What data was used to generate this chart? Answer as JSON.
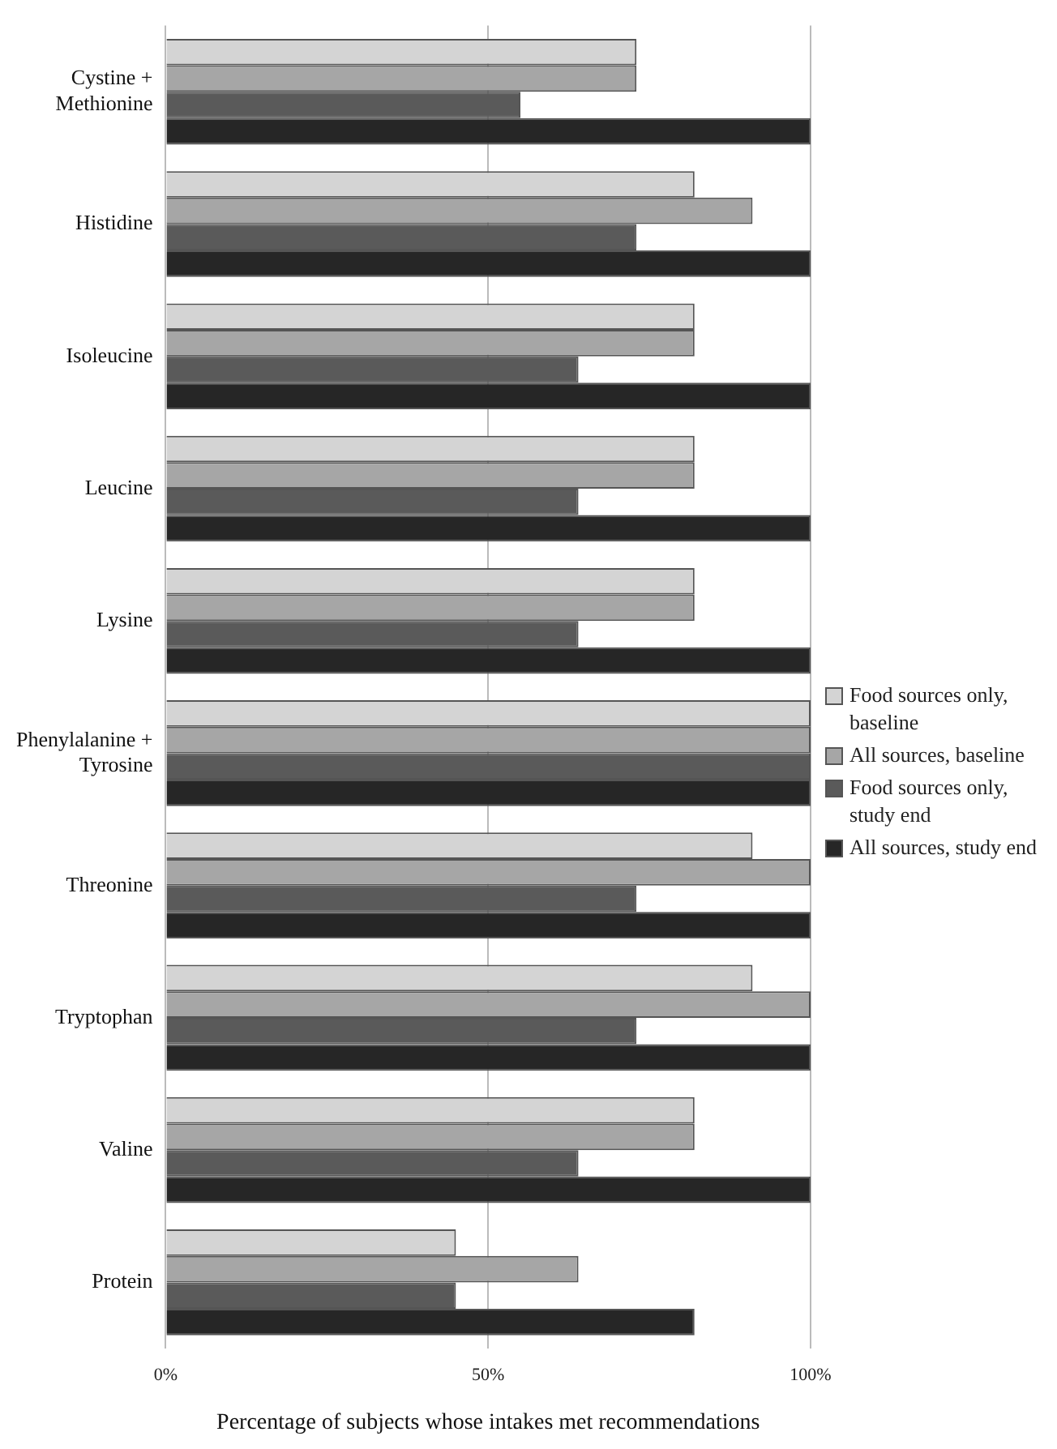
{
  "chart_data": {
    "type": "bar",
    "orientation": "horizontal",
    "xlabel": "Percentage of subjects whose intakes met recommendations",
    "categories": [
      "Cystine + Methionine",
      "Histidine",
      "Isoleucine",
      "Leucine",
      "Lysine",
      "Phenylalanine + Tyrosine",
      "Threonine",
      "Tryptophan",
      "Valine",
      "Protein"
    ],
    "series": [
      {
        "name": "Food sources only, baseline",
        "color": "#d4d4d4",
        "values": [
          73,
          82,
          82,
          82,
          82,
          100,
          91,
          91,
          82,
          45
        ]
      },
      {
        "name": "All sources, baseline",
        "color": "#a6a6a6",
        "values": [
          73,
          91,
          82,
          82,
          82,
          100,
          100,
          100,
          82,
          64
        ]
      },
      {
        "name": "Food sources only, study end",
        "color": "#5a5a5a",
        "values": [
          55,
          73,
          64,
          64,
          64,
          100,
          73,
          73,
          64,
          45
        ]
      },
      {
        "name": "All sources, study end",
        "color": "#262626",
        "values": [
          100,
          100,
          100,
          100,
          100,
          100,
          100,
          100,
          100,
          82
        ]
      }
    ],
    "xlim": [
      0,
      100
    ],
    "xticks": [
      {
        "value": 0,
        "label": "0%"
      },
      {
        "value": 50,
        "label": "50%"
      },
      {
        "value": 100,
        "label": "100%"
      }
    ],
    "grid": "x",
    "legend": "right"
  }
}
